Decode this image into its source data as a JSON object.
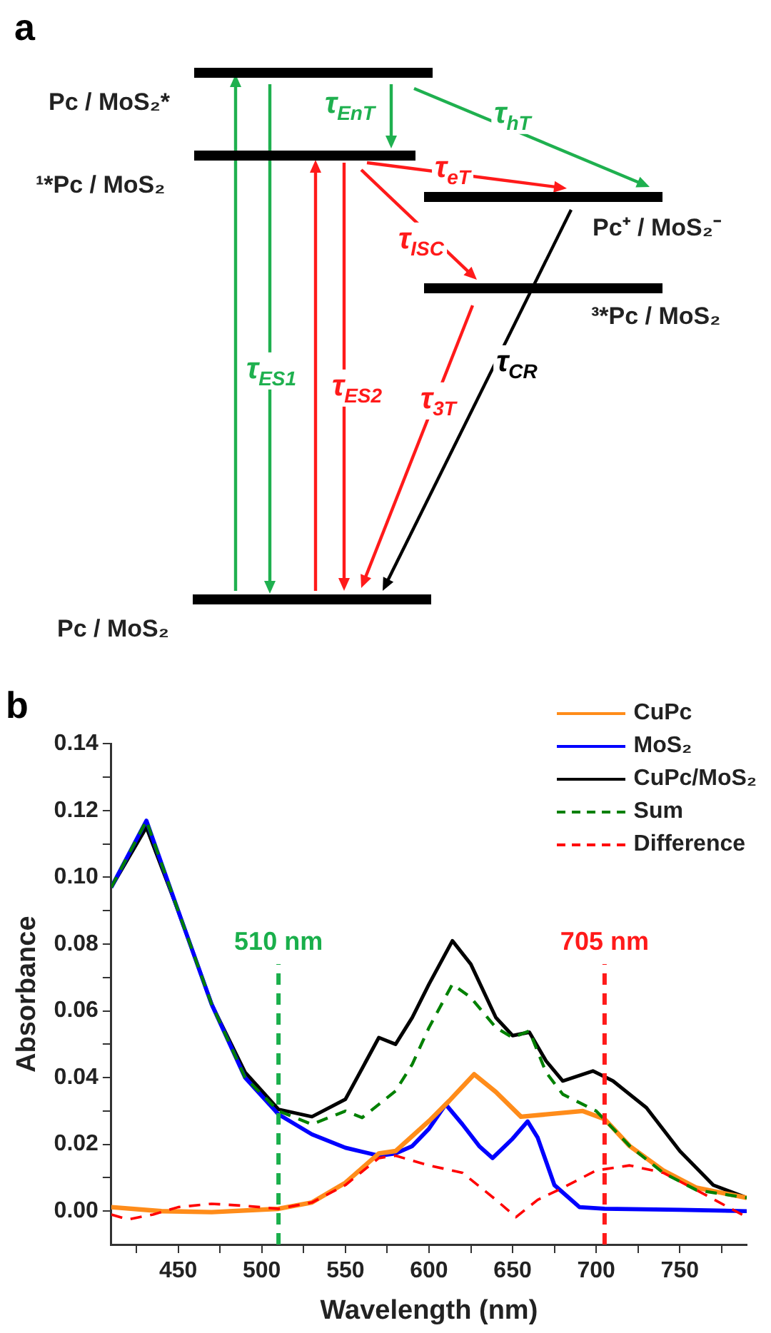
{
  "chart_data": [
    {
      "type": "other",
      "title": "a",
      "annotations": [
        "Pc / MoS₂*",
        "¹*Pc / MoS₂",
        "Pc⁺ / MoS₂⁻",
        "³*Pc / MoS₂",
        "Pc / MoS₂",
        "τ$_{EnT}$",
        "τ$_{hT}$",
        "τ$_{eT}$",
        "τ$_{ISC}$",
        "τ$_{CR}$",
        "τ$_{ES1}$",
        "τ$_{ES2}$",
        "τ$_{3T}$"
      ]
    },
    {
      "type": "line",
      "title": "b",
      "xlabel": "Wavelength (nm)",
      "ylabel": "Absorbance",
      "xlim": [
        410,
        790
      ],
      "ylim": [
        -0.01,
        0.14
      ],
      "xticks": [
        {
          "value": 425,
          "label": null
        },
        450,
        {
          "value": 475,
          "label": null
        },
        500,
        {
          "value": 525,
          "label": null
        },
        550,
        {
          "value": 575,
          "label": null
        },
        600,
        {
          "value": 625,
          "label": null
        },
        650,
        {
          "value": 675,
          "label": null
        },
        700,
        {
          "value": 725,
          "label": null
        },
        750,
        {
          "value": 775,
          "label": null
        }
      ],
      "yticks": [
        {
          "value": 0,
          "label": "0.00"
        },
        {
          "value": 0.01,
          "label": null
        },
        {
          "value": 0.02,
          "label": "0.02"
        },
        {
          "value": 0.03,
          "label": null
        },
        {
          "value": 0.04,
          "label": "0.04"
        },
        {
          "value": 0.05,
          "label": null
        },
        {
          "value": 0.06,
          "label": "0.06"
        },
        {
          "value": 0.07,
          "label": null
        },
        {
          "value": 0.08,
          "label": "0.08"
        },
        {
          "value": 0.09,
          "label": null
        },
        {
          "value": 0.1,
          "label": "0.10"
        },
        {
          "value": 0.11,
          "label": null
        },
        {
          "value": 0.12,
          "label": "0.12"
        },
        {
          "value": 0.13,
          "label": null
        },
        {
          "value": 0.14,
          "label": "0.14"
        }
      ],
      "legend": "top right",
      "marker": "none",
      "series": [
        {
          "name": "CuPc",
          "color": "#ff8c1a",
          "line_style": "solid",
          "x": [
            410,
            440,
            470,
            510,
            530,
            550,
            570,
            580,
            600,
            612,
            627,
            640,
            655,
            670,
            692,
            705,
            720,
            740,
            760,
            790
          ],
          "values": [
            0.0012,
            0,
            -0.0003,
            0.0007,
            0.0026,
            0.0085,
            0.0173,
            0.018,
            0.027,
            0.033,
            0.041,
            0.0357,
            0.0283,
            0.029,
            0.03,
            0.0276,
            0.0195,
            0.0122,
            0.007,
            0.004
          ]
        },
        {
          "name": "MoS₂",
          "color": "#0000ff",
          "line_style": "solid",
          "x": [
            410,
            431,
            450,
            470,
            490,
            510,
            530,
            550,
            570,
            580,
            590,
            600,
            610,
            620,
            630,
            638,
            650,
            659,
            665,
            675,
            690,
            705,
            750,
            790
          ],
          "values": [
            0.097,
            0.117,
            0.09,
            0.062,
            0.04,
            0.029,
            0.023,
            0.019,
            0.0166,
            0.0173,
            0.0195,
            0.0247,
            0.032,
            0.026,
            0.0195,
            0.0159,
            0.0217,
            0.0269,
            0.022,
            0.0078,
            0.0012,
            0.0007,
            0.0004,
            0
          ]
        },
        {
          "name": "CuPc/MoS₂",
          "color": "#000000",
          "line_style": "solid",
          "x": [
            410,
            431,
            450,
            470,
            490,
            510,
            530,
            550,
            570,
            580,
            590,
            600,
            614,
            625,
            640,
            650,
            660,
            670,
            680,
            698,
            710,
            730,
            750,
            770,
            790
          ],
          "values": [
            0.097,
            0.115,
            0.09,
            0.062,
            0.0416,
            0.0305,
            0.0283,
            0.0335,
            0.052,
            0.05,
            0.058,
            0.068,
            0.081,
            0.074,
            0.058,
            0.0526,
            0.0536,
            0.045,
            0.039,
            0.042,
            0.039,
            0.031,
            0.018,
            0.0078,
            0.004
          ]
        },
        {
          "name": "Sum",
          "color": "#008000",
          "line_style": "dashed",
          "x": [
            410,
            431,
            450,
            470,
            490,
            510,
            530,
            550,
            560,
            580,
            590,
            600,
            614,
            625,
            640,
            650,
            660,
            670,
            680,
            700,
            720,
            740,
            760,
            790
          ],
          "values": [
            0.097,
            0.117,
            0.09,
            0.062,
            0.04,
            0.03,
            0.026,
            0.03,
            0.028,
            0.036,
            0.044,
            0.055,
            0.068,
            0.064,
            0.055,
            0.052,
            0.054,
            0.0416,
            0.035,
            0.03,
            0.0195,
            0.0115,
            0.0063,
            0.004
          ]
        },
        {
          "name": "Difference",
          "color": "#ff0000",
          "line_style": "dashed",
          "x": [
            410,
            420,
            435,
            450,
            470,
            490,
            510,
            530,
            550,
            570,
            580,
            600,
            620,
            640,
            652,
            665,
            680,
            700,
            720,
            740,
            760,
            790
          ],
          "values": [
            -0.001,
            -0.0025,
            -0.001,
            0.0012,
            0.0022,
            0.0016,
            0.0007,
            0.0026,
            0.0078,
            0.0159,
            0.0166,
            0.0137,
            0.0115,
            0.0034,
            -0.0018,
            0.0034,
            0.007,
            0.0122,
            0.0137,
            0.0115,
            0.0063,
            -0.0018
          ]
        }
      ],
      "ref_lines": [
        {
          "axis": "x",
          "value": 510,
          "label": "510 nm",
          "color": "#1aaf4b",
          "line_style": "dashed"
        },
        {
          "axis": "x",
          "value": 705,
          "label": "705 nm",
          "color": "#ff1a1a",
          "line_style": "dashed"
        }
      ]
    }
  ]
}
